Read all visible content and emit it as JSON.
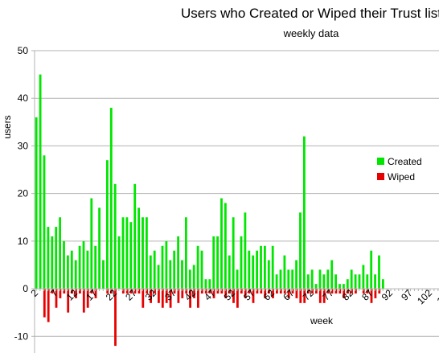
{
  "chart_data": {
    "type": "bar",
    "title": "Users who Created or Wiped their Trust list",
    "subtitle": "weekly data",
    "xlabel": "week",
    "ylabel": "users",
    "ylim": [
      -13.5,
      50
    ],
    "yticks": [
      -10,
      0,
      10,
      20,
      30,
      40,
      50
    ],
    "x_start": 2,
    "x_end": 107,
    "x_tick_labels": [
      "2",
      "7",
      "12",
      "17",
      "22",
      "27",
      "32",
      "37",
      "42",
      "47",
      "52",
      "57",
      "62",
      "67",
      "72",
      "77",
      "82",
      "87",
      "92",
      "97",
      "102",
      "107"
    ],
    "grid": "horizontal",
    "legend_position": "right",
    "series": [
      {
        "name": "Created",
        "color": "#00e600",
        "values": [
          36,
          45,
          28,
          13,
          11,
          13,
          15,
          10,
          7,
          8,
          6,
          9,
          10,
          8,
          19,
          9,
          17,
          6,
          27,
          38,
          22,
          11,
          15,
          15,
          14,
          22,
          17,
          15,
          15,
          7,
          8,
          5,
          9,
          10,
          6,
          8,
          11,
          6,
          15,
          4,
          5,
          9,
          8,
          2,
          2,
          11,
          11,
          19,
          18,
          7,
          15,
          4,
          11,
          16,
          8,
          7,
          8,
          9,
          9,
          6,
          9,
          3,
          4,
          7,
          4,
          4,
          6,
          16,
          32,
          3,
          4,
          1,
          4,
          3,
          4,
          6,
          3,
          1,
          1,
          2,
          4,
          3,
          3,
          5,
          3,
          8,
          3,
          7,
          2
        ]
      },
      {
        "name": "Wiped",
        "color": "#e60000",
        "values": [
          0,
          0,
          -6,
          -7,
          -1,
          -4,
          -2,
          -1,
          -5,
          -1,
          -2,
          -1,
          -5,
          -4,
          -1,
          -2,
          0,
          0,
          -1,
          -1,
          -12,
          0,
          -1,
          -1,
          -1,
          -1,
          -1,
          -4,
          -1,
          -3,
          -1,
          -3,
          -4,
          -3,
          -4,
          -1,
          -3,
          -2,
          -1,
          -4,
          -2,
          -4,
          -1,
          -1,
          -1,
          -2,
          -1,
          -1,
          -2,
          -1,
          -3,
          -4,
          -1,
          -2,
          -1,
          -3,
          -1,
          -1,
          -2,
          -1,
          -2,
          -1,
          -1,
          -1,
          -2,
          -1,
          -2,
          -3,
          -3,
          -1,
          -1,
          -1,
          -3,
          -3,
          -1,
          -1,
          -1,
          -1,
          -2,
          -1,
          -1,
          -1,
          0,
          -1,
          -1,
          -3,
          -2,
          -1,
          0
        ]
      }
    ]
  }
}
